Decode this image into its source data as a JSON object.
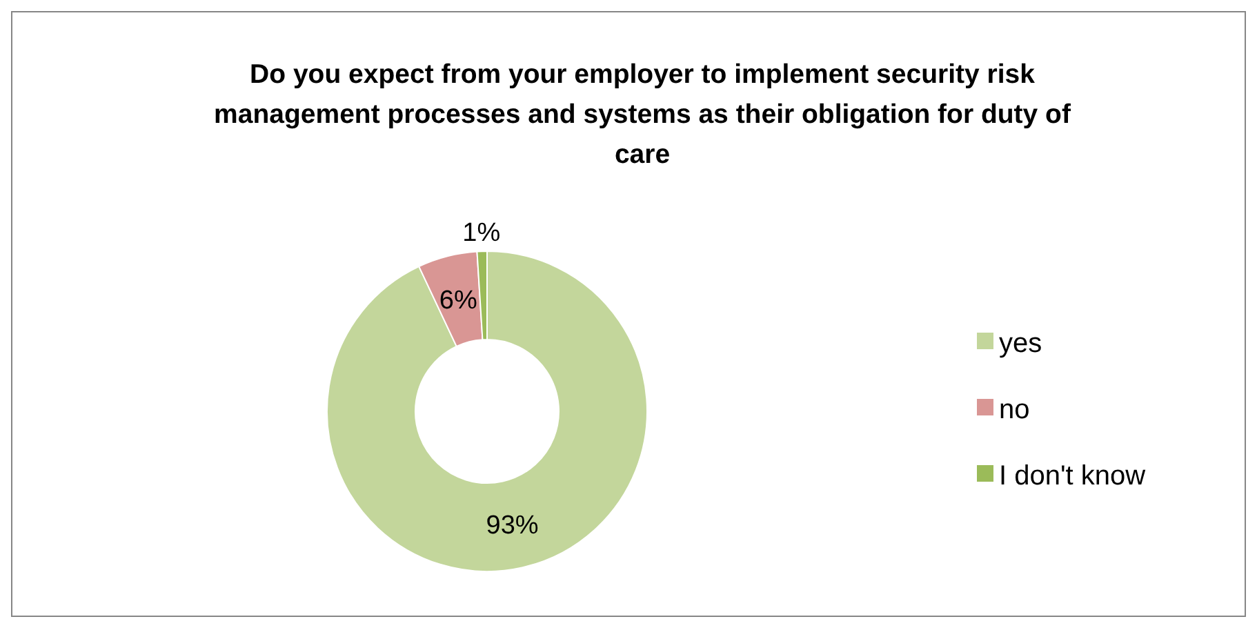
{
  "chart_data": {
    "type": "donut",
    "title": "Do you expect from your employer to implement security risk management processes and systems as their obligation for duty of care",
    "categories": [
      "yes",
      "no",
      "I don't know"
    ],
    "values": [
      93,
      6,
      1
    ],
    "colors": [
      "#c3d69b",
      "#d99694",
      "#9bbb59"
    ],
    "value_labels": [
      "93%",
      "6%",
      "1%"
    ],
    "legend": "right"
  }
}
